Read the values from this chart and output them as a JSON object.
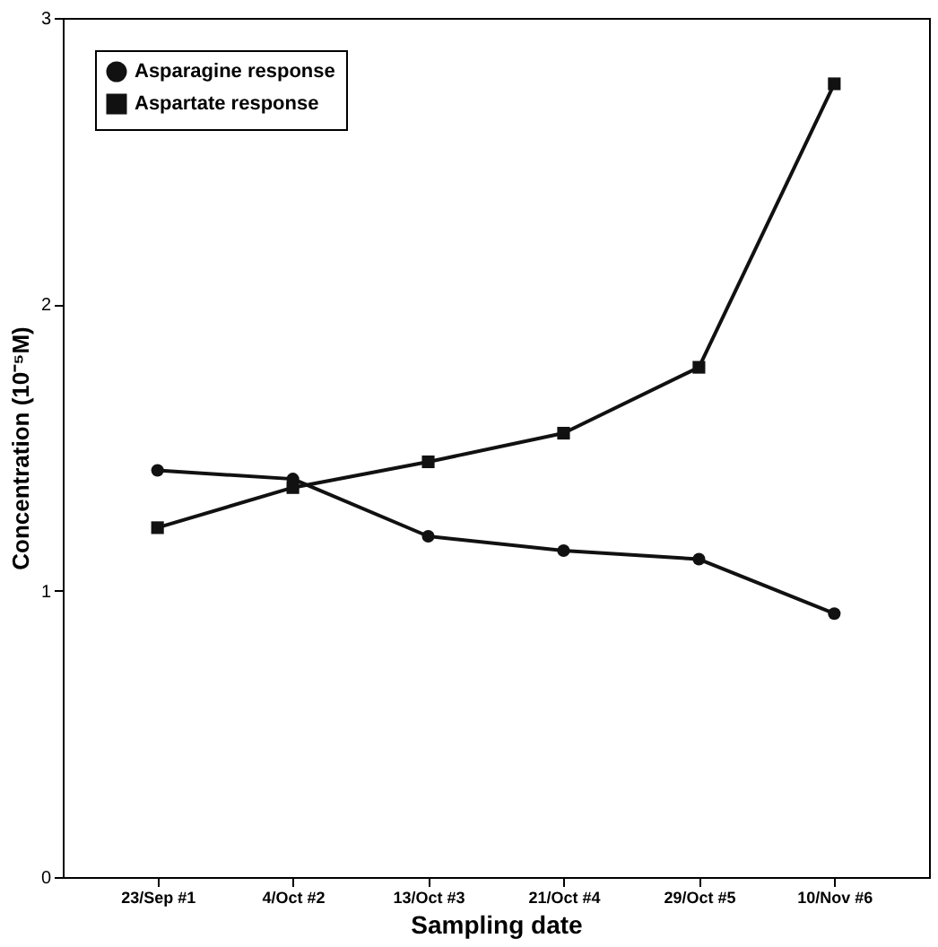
{
  "chart_data": {
    "type": "line",
    "xlabel": "Sampling date",
    "ylabel": "Concentration (10⁻⁵M)",
    "categories": [
      "23/Sep #1",
      "4/Oct #2",
      "13/Oct #3",
      "21/Oct #4",
      "29/Oct #5",
      "10/Nov #6"
    ],
    "series": [
      {
        "name": "Asparagine response",
        "color": "#111111",
        "marker": "circle",
        "values": [
          1.42,
          1.39,
          1.19,
          1.14,
          1.11,
          0.92
        ]
      },
      {
        "name": "Aspartate response",
        "color": "#111111",
        "marker": "square",
        "values": [
          1.22,
          1.36,
          1.45,
          1.55,
          1.78,
          2.77
        ]
      }
    ],
    "ylim": [
      0,
      3
    ],
    "yticks": [
      0,
      1,
      2,
      3
    ],
    "grid": false,
    "legend": "top left",
    "line_style": "solid"
  }
}
